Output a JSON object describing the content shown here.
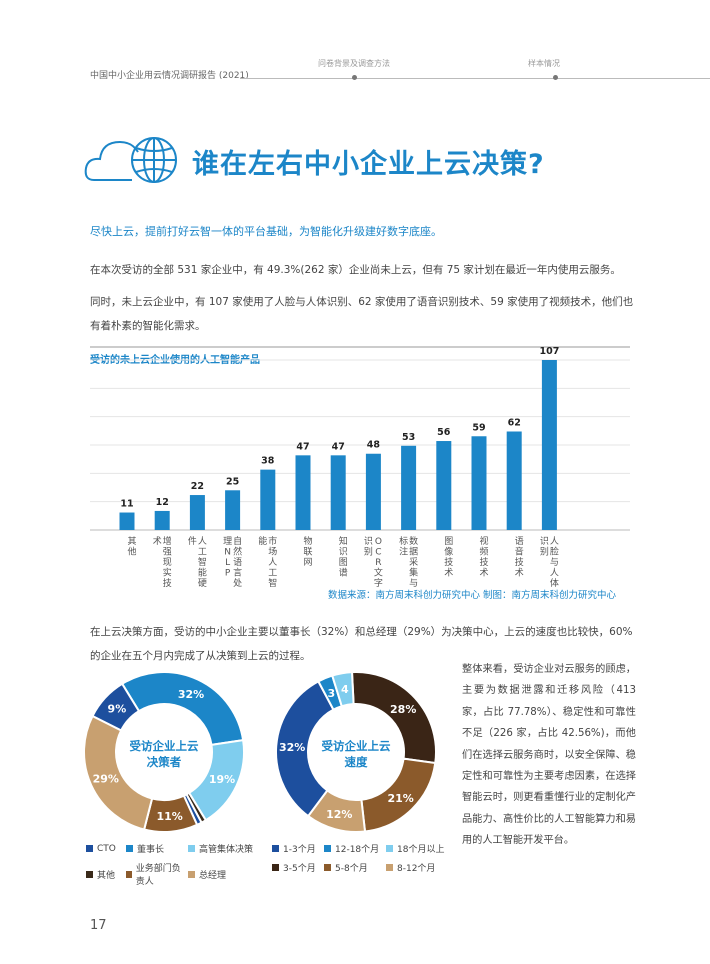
{
  "header": {
    "report_title": "中国中小企业用云情况调研报告 (2021)",
    "nav": [
      "问卷背景及调查方法",
      "样本情况"
    ]
  },
  "section": {
    "title": "谁在左右中小企业上云决策?",
    "subtitle": "尽快上云，提前打好云智一体的平台基础，为智能化升级建好数字底座。",
    "para1": "在本次受访的全部 531 家企业中，有 49.3%(262 家）企业尚未上云，但有 75 家计划在最近一年内使用云服务。",
    "para2": "同时，未上云企业中，有 107 家使用了人脸与人体识别、62 家使用了语音识别技术、59 家使用了视频技术，他们也有着朴素的智能化需求。",
    "para3": "在上云决策方面，受访的中小企业主要以董事长（32%）和总经理（29%）为决策中心，上云的速度也比较快，60% 的企业在五个月内完成了从决策到上云的过程。",
    "right_para": "整体来看，受访企业对云服务的顾虑，主要为数据泄露和迁移风险（413 家，占比 77.78%）、稳定性和可靠性不足（226 家，占比 42.56%)，而他们在选择云服务商时，以安全保障、稳定性和可靠性为主要考虑因素，在选择智能云时，则更看重懂行业的定制化产品能力、高性价比的人工智能算力和易用的人工智能开发平台。",
    "source": "数据来源：南方周末科创力研究中心   制图：南方周末科创力研究中心",
    "page_number": "17"
  },
  "colors": {
    "accent": "#1c86c8",
    "bar": "#1c86c8"
  },
  "chart_data": [
    {
      "type": "bar",
      "title": "受访的未上云企业使用的人工智能产品",
      "categories": [
        "其他",
        "增强现实技术",
        "人工智能硬件",
        "自然语言处理NLP",
        "市场人工智能",
        "物联网",
        "知识图谱",
        "OCR文字识别",
        "数据采集与标注",
        "图像技术",
        "视频技术",
        "语音技术",
        "人脸与人体识别"
      ],
      "values": [
        11,
        12,
        22,
        25,
        38,
        47,
        47,
        48,
        53,
        56,
        59,
        62,
        107
      ],
      "ylim": [
        0,
        107
      ],
      "grid": true
    },
    {
      "type": "pie",
      "title": "受访企业上云决策者",
      "labels": [
        "董事长",
        "高管集体决策",
        "其他",
        "CTO",
        "业务部门负责人",
        "总经理",
        "CTO"
      ],
      "values": [
        32,
        19,
        1,
        1,
        11,
        29,
        9
      ],
      "display_labels": [
        "32%",
        "19%",
        "",
        "",
        "11%",
        "29%",
        "9%"
      ],
      "colors": [
        "#1c86c8",
        "#7fcdee",
        "#3a2a1a",
        "#1d4f9e",
        "#8b5a2b",
        "#c8a070",
        "#1d4f9e"
      ],
      "legend": [
        {
          "label": "CTO",
          "color": "#1d4f9e"
        },
        {
          "label": "董事长",
          "color": "#1c86c8"
        },
        {
          "label": "高管集体决策",
          "color": "#7fcdee"
        },
        {
          "label": "其他",
          "color": "#3a2a1a"
        },
        {
          "label": "业务部门负责人",
          "color": "#8b5a2b"
        },
        {
          "label": "总经理",
          "color": "#c8a070"
        }
      ]
    },
    {
      "type": "pie",
      "title": "受访企业上云速度",
      "labels": [
        "3-5个月",
        "5-8个月",
        "8-12个月",
        "1-3个月",
        "12-18个月",
        "18个月以上"
      ],
      "values": [
        28,
        21,
        12,
        32,
        3,
        4
      ],
      "display_labels": [
        "28%",
        "21%",
        "12%",
        "32%",
        "3",
        "4"
      ],
      "colors": [
        "#3a2516",
        "#8b5a2b",
        "#c8a070",
        "#1d4f9e",
        "#1c86c8",
        "#7fcdee"
      ],
      "legend": [
        {
          "label": "1-3个月",
          "color": "#1d4f9e"
        },
        {
          "label": "12-18个月",
          "color": "#1c86c8"
        },
        {
          "label": "18个月以上",
          "color": "#7fcdee"
        },
        {
          "label": "3-5个月",
          "color": "#3a2516"
        },
        {
          "label": "5-8个月",
          "color": "#8b5a2b"
        },
        {
          "label": "8-12个月",
          "color": "#c8a070"
        }
      ]
    }
  ],
  "donut_centers": [
    {
      "line1": "受访企业上云",
      "line2": "决策者"
    },
    {
      "line1": "受访企业上云",
      "line2": "速度"
    }
  ]
}
